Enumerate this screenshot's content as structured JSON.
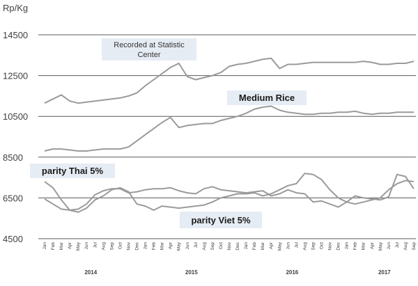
{
  "chart_data": {
    "type": "line",
    "ylabel": "Rp/Kg",
    "ylim": [
      4500,
      14500
    ],
    "yticks": [
      4500,
      6500,
      8500,
      10500,
      12500,
      14500
    ],
    "grid": true,
    "x": [
      "Jan",
      "Feb",
      "Mar",
      "Apr",
      "May",
      "Jun",
      "Jul",
      "Aug",
      "Sep",
      "Oct",
      "Nov",
      "Dec",
      "Jan",
      "Feb",
      "Mar",
      "Apr",
      "May",
      "Jun",
      "Jul",
      "Aug",
      "Sep",
      "Oct",
      "Nov",
      "Dec",
      "Jan",
      "Feb",
      "Mar",
      "Apr",
      "May",
      "Jun",
      "Jul",
      "Aug",
      "Sep",
      "Oct",
      "Nov",
      "Dec",
      "Jan",
      "Feb",
      "Mar",
      "Apr",
      "May",
      "Jun",
      "Jul",
      "Aug",
      "Sep"
    ],
    "years": [
      {
        "label": "2014",
        "center_index": 5.5
      },
      {
        "label": "2015",
        "center_index": 17.5
      },
      {
        "label": "2016",
        "center_index": 29.5
      },
      {
        "label": "2017",
        "center_index": 40.5
      }
    ],
    "series": [
      {
        "name": "",
        "color": "#9a9a9a",
        "values": [
          11150,
          11350,
          11550,
          11250,
          11150,
          11200,
          11250,
          11300,
          11350,
          11400,
          11500,
          11650,
          12000,
          12300,
          12600,
          12900,
          13100,
          12450,
          12300,
          12400,
          12500,
          12650,
          12950,
          13050,
          13100,
          13200,
          13300,
          13350,
          12850,
          13050,
          13050,
          13100,
          13150,
          13150,
          13150,
          13150,
          13150,
          13150,
          13200,
          13150,
          13050,
          13050,
          13100,
          13100,
          13200
        ]
      },
      {
        "name": "",
        "color": "#9a9a9a",
        "values": [
          8800,
          8900,
          8900,
          8850,
          8800,
          8800,
          8850,
          8900,
          8900,
          8900,
          9000,
          9300,
          9600,
          9900,
          10200,
          10450,
          9950,
          10050,
          10100,
          10150,
          10150,
          10300,
          10400,
          10500,
          10650,
          10850,
          10950,
          11000,
          10800,
          10700,
          10650,
          10600,
          10600,
          10650,
          10650,
          10700,
          10700,
          10750,
          10650,
          10600,
          10650,
          10650,
          10700,
          10700,
          10700
        ]
      },
      {
        "name": "",
        "color": "#9a9a9a",
        "values": [
          7300,
          7000,
          6400,
          5900,
          5800,
          6000,
          6400,
          6600,
          6900,
          7000,
          6800,
          6200,
          6100,
          5900,
          6100,
          6050,
          6000,
          6050,
          6100,
          6150,
          6300,
          6500,
          6600,
          6700,
          6700,
          6750,
          6600,
          6700,
          6900,
          7100,
          7200,
          7700,
          7650,
          7400,
          6900,
          6500,
          6300,
          6200,
          6300,
          6400,
          6500,
          6900,
          7200,
          7350,
          7300
        ]
      },
      {
        "name": "",
        "color": "#9a9a9a",
        "values": [
          6450,
          6200,
          5950,
          5900,
          5950,
          6200,
          6650,
          6850,
          6950,
          6950,
          6750,
          6800,
          6900,
          6950,
          6950,
          7000,
          6850,
          6750,
          6700,
          6950,
          7050,
          6900,
          6850,
          6800,
          6750,
          6800,
          6850,
          6600,
          6700,
          6900,
          6750,
          6700,
          6300,
          6350,
          6200,
          6050,
          6300,
          6600,
          6500,
          6450,
          6400,
          6550,
          7650,
          7550,
          6950
        ]
      }
    ],
    "annotations": [
      {
        "text": "Recorded at Statistic Center"
      },
      {
        "text": "Medium Rice"
      },
      {
        "text": "parity Thai 5%"
      },
      {
        "text": "parity Viet 5%"
      }
    ]
  }
}
